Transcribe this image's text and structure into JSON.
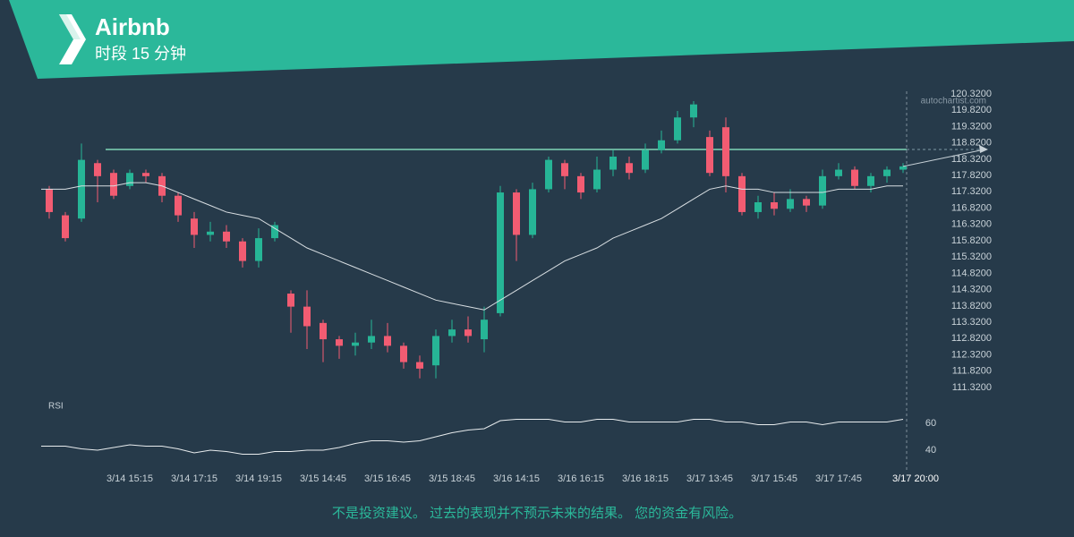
{
  "chart_data": {
    "type": "candlestick",
    "title": "Airbnb",
    "subtitle": "时段 15 分钟",
    "watermark": "autochartist.com",
    "disclaimer": "不是投资建议。 过去的表现并不预示未来的结果。 您的资金有风险。",
    "x": [
      null,
      null,
      null,
      null,
      null,
      "3/14 15:15",
      null,
      null,
      null,
      "3/14 17:15",
      null,
      null,
      null,
      "3/14 19:15",
      null,
      null,
      null,
      "3/15 14:45",
      null,
      null,
      null,
      "3/15 16:45",
      null,
      null,
      null,
      "3/15 18:45",
      null,
      null,
      null,
      "3/16 14:15",
      null,
      null,
      null,
      "3/16 16:15",
      null,
      null,
      null,
      "3/16 18:15",
      null,
      null,
      null,
      "3/17 13:45",
      null,
      null,
      null,
      "3/17 15:45",
      null,
      null,
      null,
      "3/17 17:45",
      null,
      null,
      null,
      "3/17 20:00"
    ],
    "open": [
      117.4,
      116.6,
      116.5,
      118.2,
      117.9,
      117.5,
      117.9,
      117.8,
      117.2,
      116.5,
      116.0,
      116.1,
      115.8,
      115.2,
      115.9,
      114.2,
      113.8,
      113.3,
      112.8,
      112.6,
      112.7,
      112.9,
      112.6,
      112.1,
      112.0,
      112.9,
      113.1,
      112.8,
      113.6,
      117.3,
      116.0,
      117.4,
      118.2,
      117.8,
      117.4,
      118.0,
      118.2,
      118.0,
      118.6,
      118.9,
      119.6,
      119.0,
      119.3,
      117.8,
      116.7,
      117.0,
      116.8,
      117.1,
      116.9,
      117.8,
      118.0,
      117.5,
      117.8,
      118.0
    ],
    "high": [
      117.5,
      116.7,
      118.8,
      118.3,
      118.0,
      118.0,
      118.0,
      117.9,
      117.3,
      116.7,
      116.4,
      116.3,
      115.9,
      116.2,
      116.4,
      114.3,
      114.3,
      113.4,
      112.9,
      113.0,
      113.4,
      113.3,
      112.7,
      112.3,
      113.1,
      113.4,
      113.5,
      113.8,
      117.5,
      117.4,
      117.6,
      118.4,
      118.3,
      117.9,
      118.4,
      118.6,
      118.4,
      118.8,
      119.2,
      119.8,
      120.1,
      119.2,
      119.6,
      117.9,
      117.2,
      117.3,
      117.4,
      117.2,
      118.0,
      118.2,
      118.1,
      117.9,
      118.1,
      118.2
    ],
    "low": [
      116.5,
      115.8,
      116.4,
      117.0,
      117.1,
      117.4,
      117.6,
      117.0,
      116.4,
      115.6,
      115.8,
      115.6,
      115.0,
      115.0,
      115.8,
      113.0,
      112.5,
      112.1,
      112.2,
      112.3,
      112.5,
      112.4,
      111.9,
      111.6,
      111.6,
      112.7,
      112.7,
      112.4,
      113.5,
      115.2,
      115.9,
      117.3,
      117.4,
      117.1,
      117.3,
      117.8,
      117.7,
      117.9,
      118.5,
      118.8,
      119.3,
      117.8,
      117.3,
      116.6,
      116.5,
      116.6,
      116.7,
      116.7,
      116.8,
      117.7,
      117.4,
      117.3,
      117.6,
      117.9
    ],
    "close": [
      116.7,
      115.9,
      118.3,
      117.8,
      117.2,
      117.9,
      117.8,
      117.2,
      116.6,
      116.0,
      116.1,
      115.8,
      115.2,
      115.9,
      116.3,
      113.8,
      113.2,
      112.8,
      112.6,
      112.7,
      112.9,
      112.6,
      112.1,
      111.9,
      112.9,
      113.1,
      112.9,
      113.4,
      117.3,
      116.0,
      117.4,
      118.3,
      117.8,
      117.3,
      118.0,
      118.4,
      117.9,
      118.6,
      118.9,
      119.6,
      120.0,
      117.9,
      117.8,
      116.7,
      117.0,
      116.8,
      117.1,
      116.9,
      117.8,
      118.0,
      117.5,
      117.8,
      118.0,
      118.1
    ],
    "moving_average": [
      117.4,
      117.4,
      117.5,
      117.5,
      117.5,
      117.6,
      117.6,
      117.5,
      117.3,
      117.1,
      116.9,
      116.7,
      116.6,
      116.5,
      116.2,
      115.9,
      115.6,
      115.4,
      115.2,
      115.0,
      114.8,
      114.6,
      114.4,
      114.2,
      114.0,
      113.9,
      113.8,
      113.7,
      114.0,
      114.3,
      114.6,
      114.9,
      115.2,
      115.4,
      115.6,
      115.9,
      116.1,
      116.3,
      116.5,
      116.8,
      117.1,
      117.4,
      117.5,
      117.4,
      117.4,
      117.3,
      117.3,
      117.3,
      117.3,
      117.4,
      117.4,
      117.4,
      117.5,
      117.5
    ],
    "resistance": 118.62,
    "up_color": "#26b596",
    "down_color": "#f25c72",
    "ylim": [
      111.32,
      120.32
    ],
    "yticks": [
      {
        "value": 111.32,
        "label": "111.3200"
      },
      {
        "value": 111.82,
        "label": "111.8200"
      },
      {
        "value": 112.32,
        "label": "112.3200"
      },
      {
        "value": 112.82,
        "label": "112.8200"
      },
      {
        "value": 113.32,
        "label": "113.3200"
      },
      {
        "value": 113.82,
        "label": "113.8200"
      },
      {
        "value": 114.32,
        "label": "114.3200"
      },
      {
        "value": 114.82,
        "label": "114.8200"
      },
      {
        "value": 115.32,
        "label": "115.3200"
      },
      {
        "value": 115.82,
        "label": "115.8200"
      },
      {
        "value": 116.32,
        "label": "116.3200"
      },
      {
        "value": 116.82,
        "label": "116.8200"
      },
      {
        "value": 117.32,
        "label": "117.3200"
      },
      {
        "value": 117.82,
        "label": "117.8200"
      },
      {
        "value": 118.32,
        "label": "118.3200"
      },
      {
        "value": 118.82,
        "label": "118.8200"
      },
      {
        "value": 119.32,
        "label": "119.3200"
      },
      {
        "value": 119.82,
        "label": "119.8200"
      },
      {
        "value": 120.32,
        "label": "120.3200"
      }
    ],
    "rsi": {
      "name": "RSI",
      "ylim": [
        30,
        70
      ],
      "yticks": [
        40,
        60
      ],
      "values": [
        43,
        43,
        41,
        40,
        42,
        44,
        43,
        43,
        41,
        38,
        40,
        39,
        37,
        37,
        39,
        39,
        40,
        40,
        42,
        45,
        47,
        47,
        46,
        47,
        50,
        53,
        55,
        56,
        62,
        63,
        63,
        63,
        61,
        61,
        63,
        63,
        61,
        61,
        61,
        61,
        63,
        63,
        61,
        61,
        59,
        59,
        61,
        61,
        59,
        61,
        61,
        61,
        61,
        63
      ]
    }
  }
}
